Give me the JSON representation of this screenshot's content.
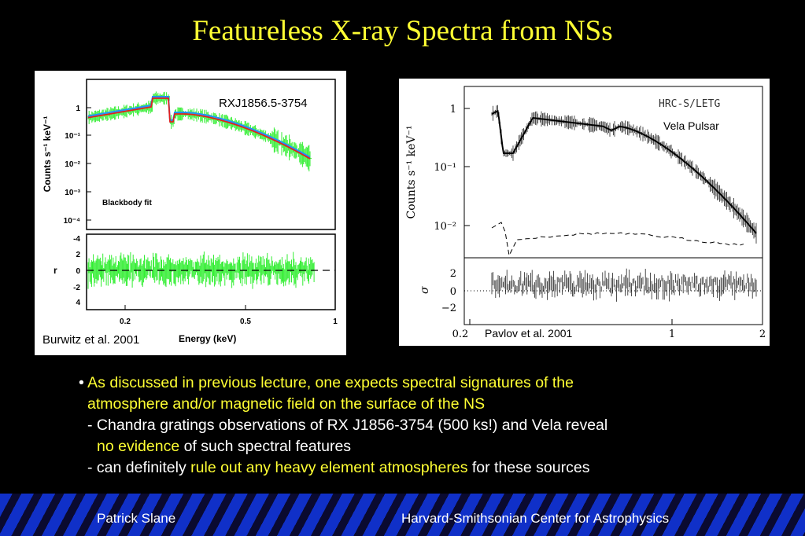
{
  "slide": {
    "title": "Featureless X-ray Spectra from NSs"
  },
  "left_figure": {
    "source_label": "RXJ1856.5-3754",
    "inset_label": "Blackbody fit",
    "ylabel_top": "Counts s⁻¹ keV⁻¹",
    "ylabel_bottom": "r",
    "xlabel": "Energy (keV)",
    "y_ticks_top": [
      "1",
      "10⁻¹",
      "10⁻²",
      "10⁻³",
      "10⁻⁴"
    ],
    "y_ticks_bottom": [
      "-4",
      "2",
      "0",
      "-2",
      "4"
    ],
    "x_ticks": [
      "0.2",
      "0.5",
      "1"
    ],
    "citation": "Burwitz et al. 2001",
    "colors": {
      "data": "#33ee33",
      "model_red": "#e02020",
      "model_blue": "#2090ff"
    }
  },
  "right_figure": {
    "instrument_label": "HRC-S/LETG",
    "source_label": "Vela Pulsar",
    "ylabel_top": "Counts s⁻¹ keV⁻¹",
    "ylabel_bottom": "σ",
    "y_ticks_top": [
      "1",
      "10⁻¹",
      "10⁻²"
    ],
    "y_ticks_bottom": [
      "2",
      "0",
      "−2"
    ],
    "x_ticks": [
      "0.2",
      "1",
      "2"
    ],
    "citation": "Pavlov et al. 2001"
  },
  "bullets": {
    "marker": "•",
    "b1_line1": "As discussed in previous lecture, one expects spectral signatures of the",
    "b1_line2": "atmosphere and/or magnetic field on the surface of the NS",
    "s1_prefix": "- Chandra gratings observations of RX J1856-3754 (500 ks!) and Vela reveal",
    "s1_highlight": "no evidence",
    "s1_suffix": " of such spectral features",
    "s2_prefix": "- can definitely ",
    "s2_highlight": "rule out any heavy element atmospheres",
    "s2_suffix": " for these sources"
  },
  "footer": {
    "author": "Patrick Slane",
    "institution": "Harvard-Smithsonian Center for Astrophysics"
  }
}
